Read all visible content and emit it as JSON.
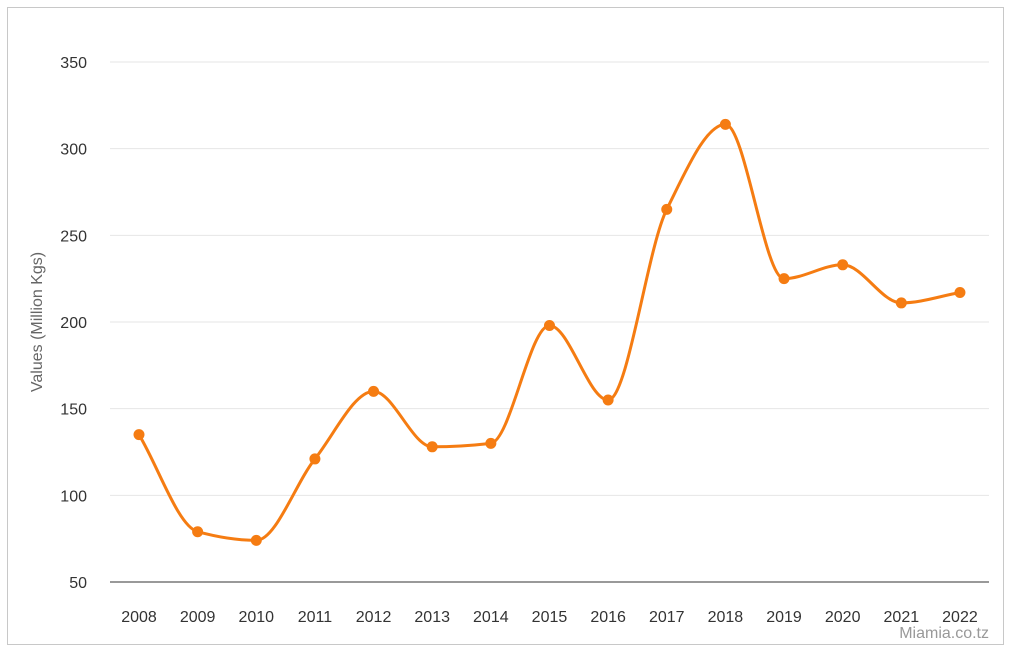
{
  "chart_data": {
    "type": "line",
    "title": "",
    "xlabel": "",
    "ylabel": "Values (Million Kgs)",
    "x": [
      "2008",
      "2009",
      "2010",
      "2011",
      "2012",
      "2013",
      "2014",
      "2015",
      "2016",
      "2017",
      "2018",
      "2019",
      "2020",
      "2021",
      "2022"
    ],
    "series": [
      {
        "values": [
          135,
          79,
          74,
          121,
          160,
          128,
          130,
          198,
          155,
          265,
          314,
          225,
          233,
          211,
          217
        ],
        "color": "#f57c12"
      }
    ],
    "ylim": [
      50,
      350
    ],
    "yticks": [
      50,
      100,
      150,
      200,
      250,
      300,
      350
    ],
    "grid": true,
    "smooth": true,
    "legend": "none"
  },
  "credit": "Miamia.co.tz",
  "colors": {
    "line": "#f57c12",
    "grid": "#e6e6e6",
    "axis": "#333333"
  }
}
